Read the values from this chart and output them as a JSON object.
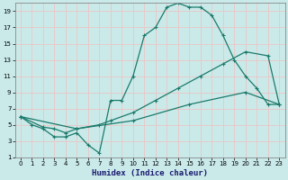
{
  "title": "",
  "xlabel": "Humidex (Indice chaleur)",
  "xlim": [
    -0.5,
    23.5
  ],
  "ylim": [
    1,
    20
  ],
  "xticks": [
    0,
    1,
    2,
    3,
    4,
    5,
    6,
    7,
    8,
    9,
    10,
    11,
    12,
    13,
    14,
    15,
    16,
    17,
    18,
    19,
    20,
    21,
    22,
    23
  ],
  "yticks": [
    1,
    3,
    5,
    7,
    9,
    11,
    13,
    15,
    17,
    19
  ],
  "bg_color": "#caeaea",
  "grid_color": "#e8c8c8",
  "line_color": "#1a7a6a",
  "line1_x": [
    0,
    1,
    2,
    3,
    4,
    5,
    6,
    7,
    8,
    9,
    10,
    11,
    12,
    13,
    14,
    15,
    16,
    17,
    18,
    19,
    20,
    21,
    22,
    23
  ],
  "line1_y": [
    6,
    5,
    4.5,
    3.5,
    3.5,
    4,
    2.5,
    1.5,
    8,
    8,
    11,
    16,
    17,
    19.5,
    20,
    19.5,
    19.5,
    18.5,
    16,
    13,
    11,
    9.5,
    7.5,
    7.5
  ],
  "line2_x": [
    0,
    2,
    3,
    4,
    5,
    7,
    8,
    10,
    12,
    14,
    16,
    18,
    20,
    22,
    23
  ],
  "line2_y": [
    6,
    4.7,
    4.5,
    4,
    4.5,
    5,
    5.5,
    6.5,
    8,
    9.5,
    11,
    12.5,
    14,
    13.5,
    7.5
  ],
  "line3_x": [
    0,
    5,
    10,
    15,
    20,
    23
  ],
  "line3_y": [
    6,
    4.5,
    5.5,
    7.5,
    9,
    7.5
  ]
}
